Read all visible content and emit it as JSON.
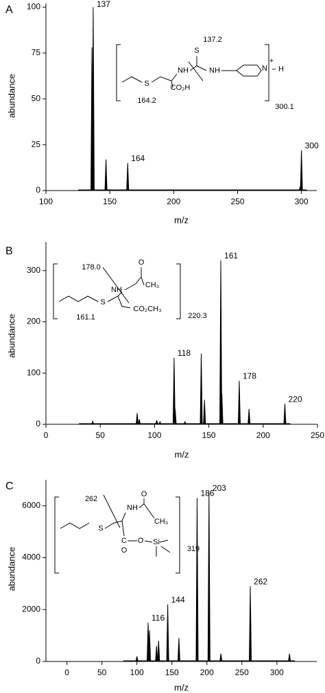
{
  "chart_data": [
    {
      "type": "stem",
      "panel": "A",
      "xlabel": "m/z",
      "ylabel": "abundance",
      "xlim": [
        100,
        312
      ],
      "xticks": [
        100,
        150,
        200,
        250,
        300
      ],
      "ylim": [
        0,
        102
      ],
      "yticks": [
        0,
        25,
        50,
        75,
        100
      ],
      "x": [
        136,
        137,
        147,
        164,
        299,
        300
      ],
      "values": [
        78,
        100,
        17,
        15,
        2,
        22
      ],
      "x_labels": [
        null,
        "137",
        null,
        "164",
        null,
        "300"
      ],
      "color": "#000000",
      "structure_labels": [
        "137.2",
        "S",
        "NH",
        "NH",
        "N",
        "+",
        "H",
        "S",
        "164.2",
        "CO₂H",
        "300.1"
      ]
    },
    {
      "type": "stem",
      "panel": "B",
      "xlabel": "m/z",
      "ylabel": "abundance",
      "xlim": [
        0,
        250
      ],
      "xticks": [
        0,
        50,
        100,
        150,
        200,
        250
      ],
      "ylim": [
        0,
        356
      ],
      "yticks": [
        0,
        100,
        200,
        300
      ],
      "x": [
        43,
        84,
        86,
        102,
        105,
        118,
        119,
        128,
        143,
        146,
        161,
        162,
        178,
        187,
        220
      ],
      "values": [
        6,
        22,
        10,
        8,
        5,
        130,
        30,
        5,
        138,
        48,
        320,
        60,
        85,
        30,
        40
      ],
      "x_labels": [
        null,
        null,
        null,
        null,
        null,
        "118",
        null,
        null,
        null,
        null,
        "161",
        null,
        "178",
        null,
        "220"
      ],
      "color": "#000000",
      "structure_labels": [
        "178.0",
        "O",
        "NH",
        "CH₃",
        "S",
        "CO₂CH₃",
        "161.1",
        "220.3"
      ]
    },
    {
      "type": "stem",
      "panel": "C",
      "xlabel": "m/z",
      "ylabel": "abundance",
      "xlim": [
        -30,
        357
      ],
      "xticks": [
        0,
        50,
        100,
        150,
        200,
        250,
        300
      ],
      "ylim": [
        0,
        7000
      ],
      "yticks": [
        0,
        2000,
        4000,
        6000
      ],
      "x": [
        100,
        116,
        118,
        128,
        131,
        144,
        160,
        186,
        203,
        220,
        262,
        318
      ],
      "values": [
        200,
        1500,
        1200,
        600,
        800,
        2200,
        900,
        6300,
        6500,
        300,
        2900,
        300
      ],
      "x_labels": [
        null,
        "116",
        null,
        null,
        null,
        "144",
        null,
        "186",
        "203",
        null,
        "262",
        null
      ],
      "color": "#000000",
      "structure_labels": [
        "262",
        "O",
        "NH",
        "CH₃",
        "S",
        "C",
        "O",
        "Si",
        "O",
        "319"
      ]
    }
  ]
}
